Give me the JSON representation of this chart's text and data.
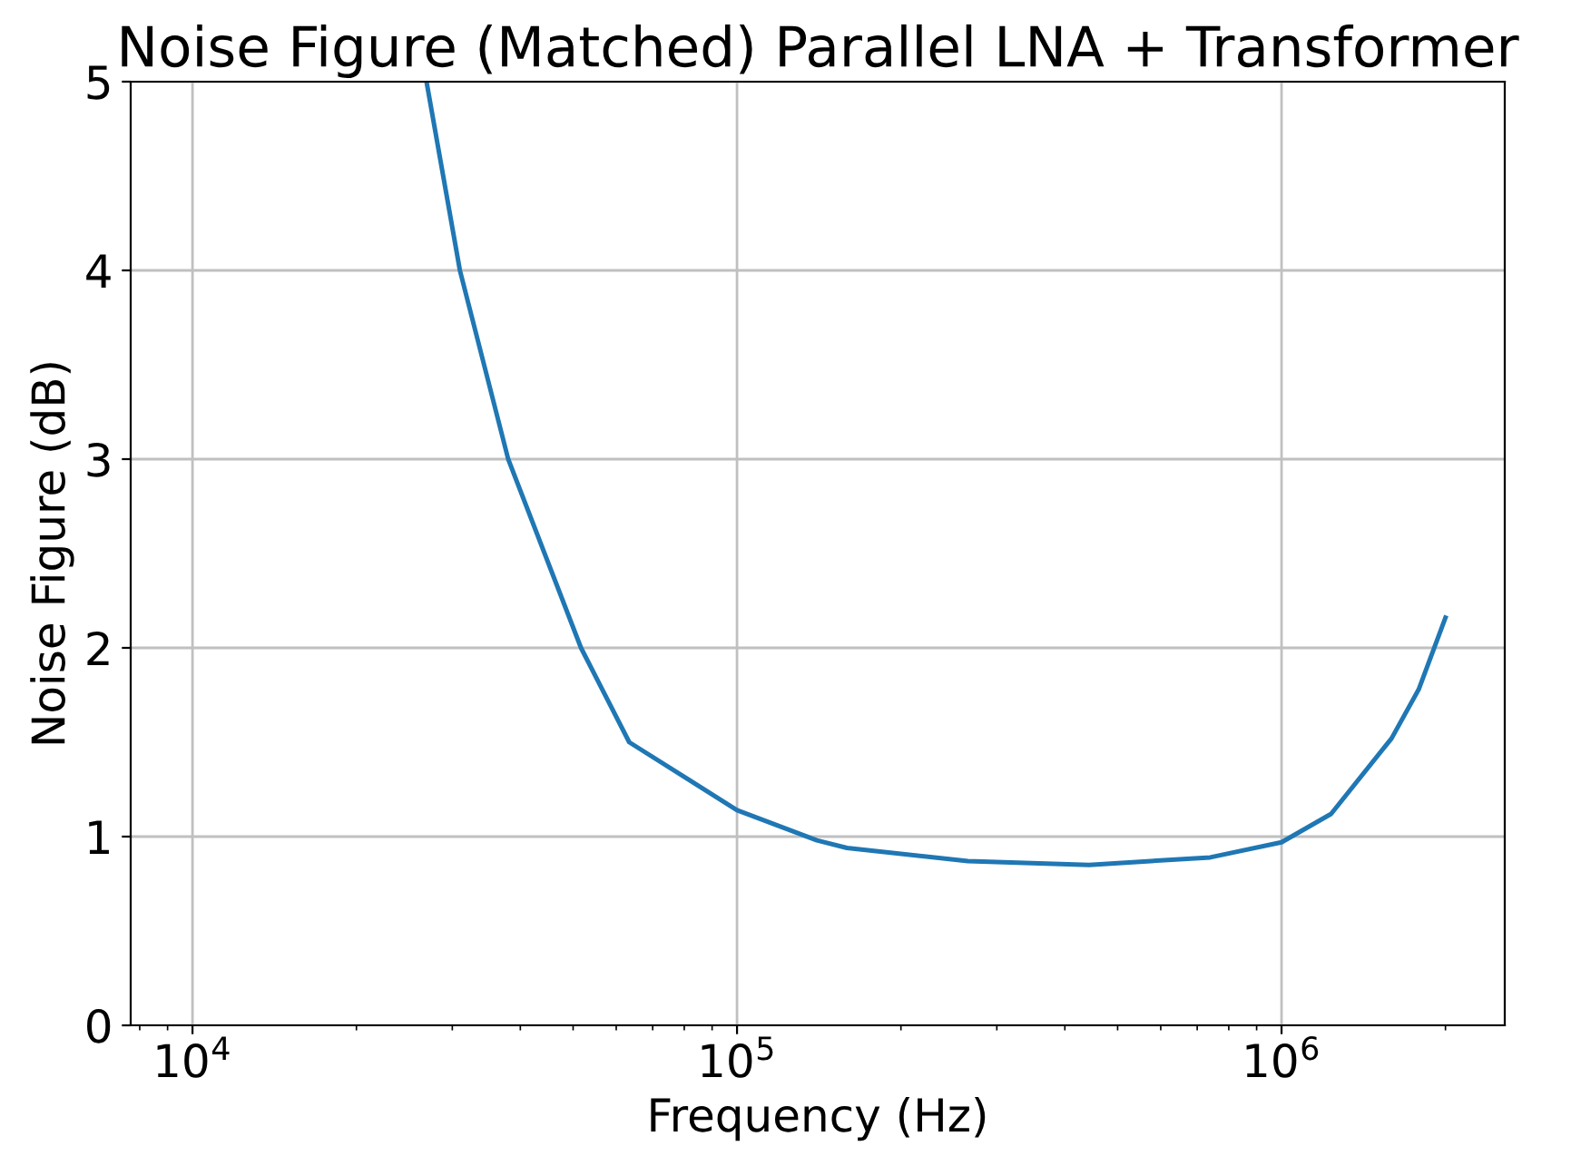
{
  "chart_data": {
    "type": "line",
    "title": "Noise Figure (Matched) Parallel LNA + Transformer",
    "xlabel": "Frequency (Hz)",
    "ylabel": "Noise Figure (dB)",
    "x": [
      26900,
      30980,
      38000,
      51700,
      63400,
      100000,
      140200,
      159200,
      265500,
      443000,
      739600,
      1000000,
      1233000,
      1592000,
      1786000,
      2000000
    ],
    "series": [
      {
        "color": "#1f77b4",
        "values": [
          5,
          4,
          3,
          2,
          1.5,
          1.14,
          0.98,
          0.94,
          0.87,
          0.85,
          0.89,
          0.97,
          1.12,
          1.52,
          1.78,
          2.16
        ]
      }
    ],
    "log": "x",
    "xlim": [
      7700,
      2570000
    ],
    "xticks": [
      {
        "value": 10000,
        "label": "10$^{4}$"
      },
      {
        "value": 100000,
        "label": "10$^{5}$"
      },
      {
        "value": 1000000,
        "label": "10$^{6}$"
      }
    ],
    "ylim": [
      0,
      5
    ],
    "yticks": [
      0,
      1,
      2,
      3,
      4,
      5
    ],
    "grid": true,
    "marker": "none",
    "line_style": "solid"
  }
}
